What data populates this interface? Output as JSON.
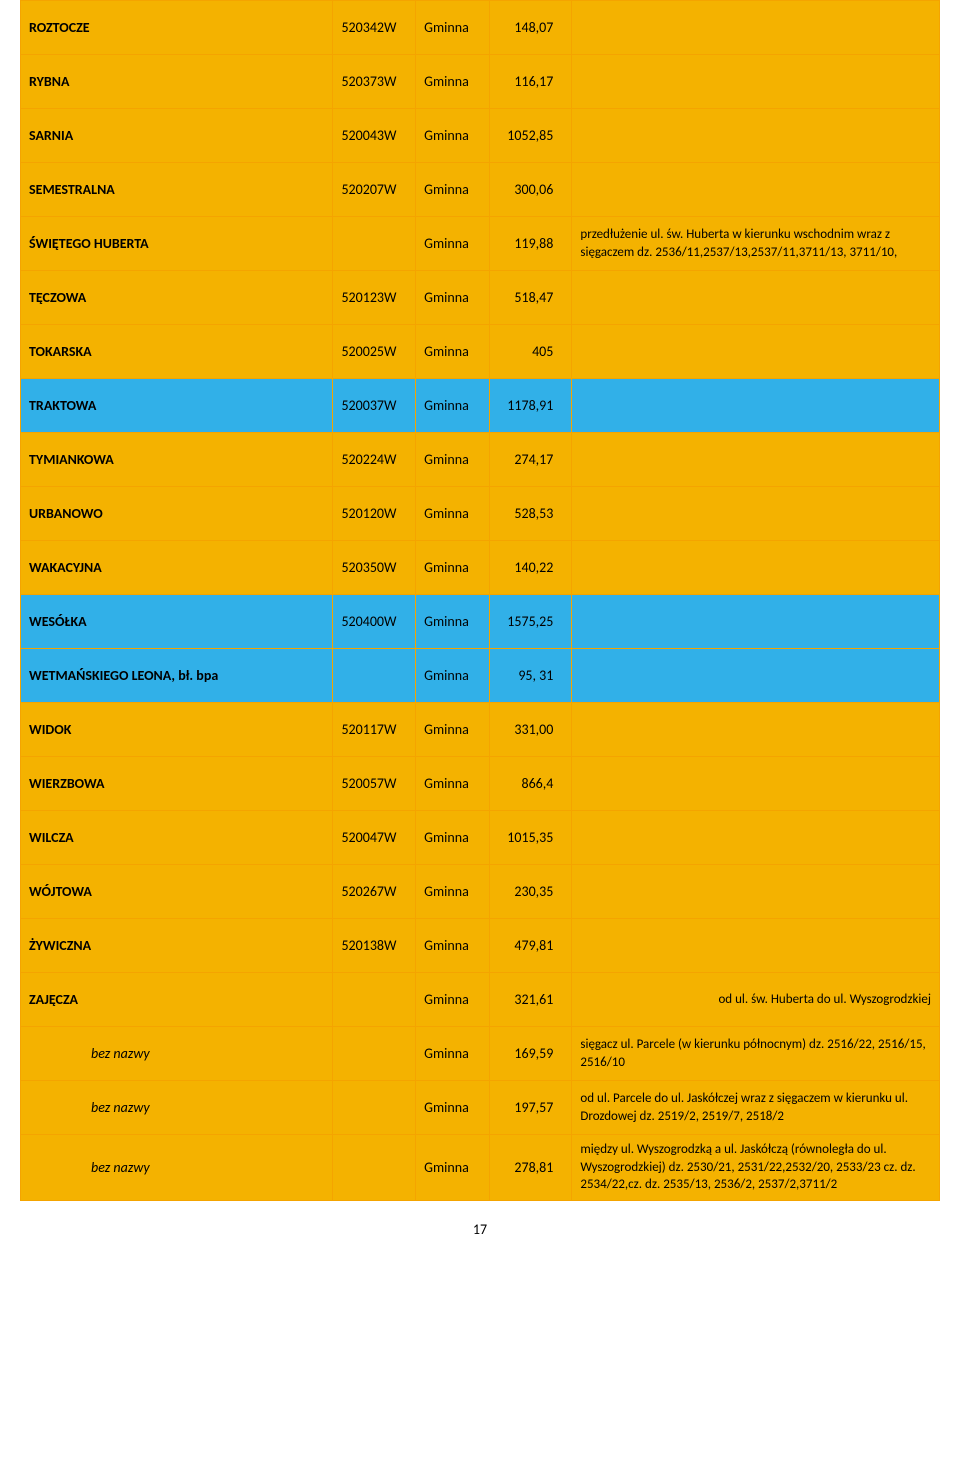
{
  "gm": "Gminna",
  "page_number": "17",
  "colors": {
    "orange": "#f4b200",
    "blue": "#31b0e8",
    "border": "#f4a400",
    "text": "#000000"
  },
  "rows": [
    {
      "tone": "orange",
      "name": "ROZTOCZE",
      "code": "520342W",
      "val": "148,07",
      "info": ""
    },
    {
      "tone": "orange",
      "name": "RYBNA",
      "code": "520373W",
      "val": "116,17",
      "info": ""
    },
    {
      "tone": "orange",
      "name": "SARNIA",
      "code": "520043W",
      "val": "1052,85",
      "info": ""
    },
    {
      "tone": "orange",
      "name": "SEMESTRALNA",
      "code": "520207W",
      "val": "300,06",
      "info": ""
    },
    {
      "tone": "orange",
      "name": "ŚWIĘTEGO HUBERTA",
      "code": "",
      "val": "119,88",
      "info": "przedłużenie ul. św. Huberta  w kierunku wschodnim wraz z sięgaczem\ndz. 2536/11,2537/13,2537/11,3711/13, 3711/10,"
    },
    {
      "tone": "orange",
      "name": "TĘCZOWA",
      "code": "520123W",
      "val": "518,47",
      "info": ""
    },
    {
      "tone": "orange",
      "name": "TOKARSKA",
      "code": "520025W",
      "val": "405",
      "info": ""
    },
    {
      "tone": "blue",
      "name": "TRAKTOWA",
      "code": "520037W",
      "val": "1178,91",
      "info": ""
    },
    {
      "tone": "orange",
      "name": "TYMIANKOWA",
      "code": "520224W",
      "val": "274,17",
      "info": ""
    },
    {
      "tone": "orange",
      "name": "URBANOWO",
      "code": "520120W",
      "val": "528,53",
      "info": ""
    },
    {
      "tone": "orange",
      "name": "WAKACYJNA",
      "code": "520350W",
      "val": "140,22",
      "info": ""
    },
    {
      "tone": "blue",
      "name": "WESÓŁKA",
      "code": "520400W",
      "val": "1575,25",
      "info": ""
    },
    {
      "tone": "blue",
      "name": "WETMAŃSKIEGO LEONA, bł. bpa",
      "code": "",
      "val": "95, 31",
      "info": ""
    },
    {
      "tone": "orange",
      "name": "WIDOK",
      "code": "520117W",
      "val": "331,00",
      "info": ""
    },
    {
      "tone": "orange",
      "name": "WIERZBOWA",
      "code": "520057W",
      "val": "866,4",
      "info": ""
    },
    {
      "tone": "orange",
      "name": "WILCZA",
      "code": "520047W",
      "val": "1015,35",
      "info": ""
    },
    {
      "tone": "orange",
      "name": "WÓJTOWA",
      "code": "520267W",
      "val": "230,35",
      "info": ""
    },
    {
      "tone": "orange",
      "name": "ŻYWICZNA",
      "code": "520138W",
      "val": "479,81",
      "info": ""
    },
    {
      "tone": "orange",
      "name": "ZAJĘCZA",
      "code": "",
      "val": "321,61",
      "info": "od ul. św. Huberta do ul. Wyszogrodzkiej",
      "info_align": "right"
    },
    {
      "tone": "orange",
      "name": "bez nazwy",
      "italic": true,
      "code": "",
      "val": "169,59",
      "info": "sięgacz ul. Parcele (w kierunku północnym)\ndz. 2516/22, 2516/15,\n2516/10"
    },
    {
      "tone": "orange",
      "name": "bez nazwy",
      "italic": true,
      "code": "",
      "val": "197,57",
      "info": "od ul. Parcele do  ul. Jaskółczej wraz z sięgaczem w kierunku  ul. Drozdowej\ndz. 2519/2, 2519/7, 2518/2"
    },
    {
      "tone": "orange",
      "name": "bez nazwy",
      "italic": true,
      "code": "",
      "val": "278,81",
      "info": "między ul. Wyszogrodzką a ul. Jaskółczą (równoległa do ul. Wyszogrodzkiej)\ndz. 2530/21, 2531/22,2532/20, 2533/23\ncz. dz. 2534/22,cz. dz. 2535/13,\n2536/2, 2537/2,3711/2"
    }
  ]
}
